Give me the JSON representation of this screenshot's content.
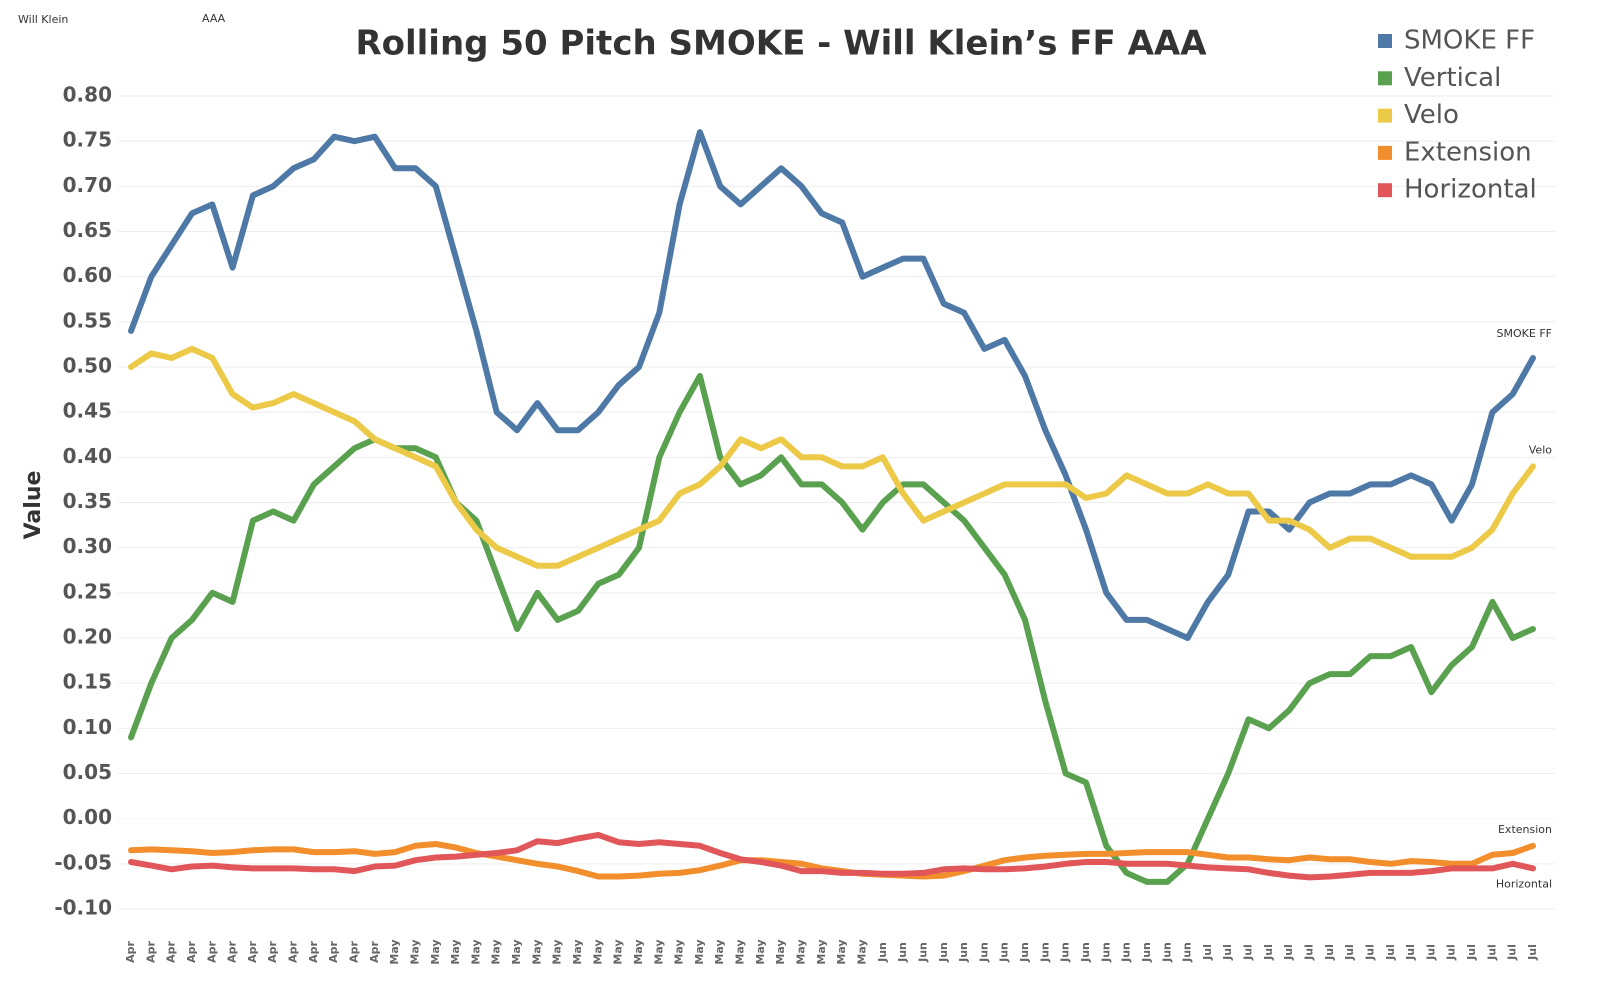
{
  "chart_data": {
    "type": "line",
    "title": "Rolling 50 Pitch SMOKE - Will Klein’s FF AAA",
    "player_label": "Will Klein",
    "level_label": "AAA",
    "y_label": "Value",
    "grid": true,
    "legend": "top-right",
    "ylim": [
      -0.1,
      0.8
    ],
    "yticks": [
      {
        "value": -0.1,
        "label": "-0.10"
      },
      {
        "value": -0.05,
        "label": "-0.05"
      },
      {
        "value": 0,
        "label": "0.00"
      },
      {
        "value": 0.05,
        "label": "0.05"
      },
      {
        "value": 0.1,
        "label": "0.10"
      },
      {
        "value": 0.15,
        "label": "0.15"
      },
      {
        "value": 0.2,
        "label": "0.20"
      },
      {
        "value": 0.25,
        "label": "0.25"
      },
      {
        "value": 0.3,
        "label": "0.30"
      },
      {
        "value": 0.35,
        "label": "0.35"
      },
      {
        "value": 0.4,
        "label": "0.40"
      },
      {
        "value": 0.45,
        "label": "0.45"
      },
      {
        "value": 0.5,
        "label": "0.50"
      },
      {
        "value": 0.55,
        "label": "0.55"
      },
      {
        "value": 0.6,
        "label": "0.60"
      },
      {
        "value": 0.65,
        "label": "0.65"
      },
      {
        "value": 0.7,
        "label": "0.70"
      },
      {
        "value": 0.75,
        "label": "0.75"
      },
      {
        "value": 0.8,
        "label": "0.80"
      }
    ],
    "categories": [
      "Apr",
      "Apr",
      "Apr",
      "Apr",
      "Apr",
      "Apr",
      "Apr",
      "Apr",
      "Apr",
      "Apr",
      "Apr",
      "Apr",
      "Apr",
      "May",
      "May",
      "May",
      "May",
      "May",
      "May",
      "May",
      "May",
      "May",
      "May",
      "May",
      "May",
      "May",
      "May",
      "May",
      "May",
      "May",
      "May",
      "May",
      "May",
      "May",
      "May",
      "May",
      "May",
      "Jun",
      "Jun",
      "Jun",
      "Jun",
      "Jun",
      "Jun",
      "Jun",
      "Jun",
      "Jun",
      "Jun",
      "Jun",
      "Jun",
      "Jun",
      "Jun",
      "Jun",
      "Jun",
      "Jul",
      "Jul",
      "Jul",
      "Jul",
      "Jul",
      "Jul",
      "Jul",
      "Jul",
      "Jul",
      "Jul",
      "Jul",
      "Jul",
      "Jul",
      "Jul",
      "Jul",
      "Jul",
      "Jul"
    ],
    "series": [
      {
        "name": "SMOKE FF",
        "color": "#4e79a7",
        "end_label": true,
        "values": [
          0.54,
          0.6,
          0.635,
          0.67,
          0.68,
          0.61,
          0.69,
          0.7,
          0.72,
          0.73,
          0.755,
          0.75,
          0.755,
          0.72,
          0.72,
          0.7,
          0.62,
          0.54,
          0.45,
          0.43,
          0.46,
          0.43,
          0.43,
          0.45,
          0.48,
          0.5,
          0.56,
          0.68,
          0.76,
          0.7,
          0.68,
          0.7,
          0.72,
          0.7,
          0.67,
          0.66,
          0.6,
          0.61,
          0.62,
          0.62,
          0.57,
          0.56,
          0.52,
          0.53,
          0.49,
          0.43,
          0.38,
          0.32,
          0.25,
          0.22,
          0.22,
          0.21,
          0.2,
          0.24,
          0.27,
          0.34,
          0.34,
          0.32,
          0.35,
          0.36,
          0.36,
          0.37,
          0.37,
          0.38,
          0.37,
          0.33,
          0.37,
          0.45,
          0.47,
          0.51
        ]
      },
      {
        "name": "Vertical",
        "color": "#59a14f",
        "end_label": false,
        "values": [
          0.09,
          0.15,
          0.2,
          0.22,
          0.25,
          0.24,
          0.33,
          0.34,
          0.33,
          0.37,
          0.39,
          0.41,
          0.42,
          0.41,
          0.41,
          0.4,
          0.35,
          0.33,
          0.27,
          0.21,
          0.25,
          0.22,
          0.23,
          0.26,
          0.27,
          0.3,
          0.4,
          0.45,
          0.49,
          0.4,
          0.37,
          0.38,
          0.4,
          0.37,
          0.37,
          0.35,
          0.32,
          0.35,
          0.37,
          0.37,
          0.35,
          0.33,
          0.3,
          0.27,
          0.22,
          0.13,
          0.05,
          0.04,
          -0.03,
          -0.06,
          -0.07,
          -0.07,
          -0.05,
          0.0,
          0.05,
          0.11,
          0.1,
          0.12,
          0.15,
          0.16,
          0.16,
          0.18,
          0.18,
          0.19,
          0.14,
          0.17,
          0.19,
          0.24,
          0.2,
          0.21
        ]
      },
      {
        "name": "Velo",
        "color": "#edc948",
        "end_label": true,
        "values": [
          0.5,
          0.515,
          0.51,
          0.52,
          0.51,
          0.47,
          0.455,
          0.46,
          0.47,
          0.46,
          0.45,
          0.44,
          0.42,
          0.41,
          0.4,
          0.39,
          0.35,
          0.32,
          0.3,
          0.29,
          0.28,
          0.28,
          0.29,
          0.3,
          0.31,
          0.32,
          0.33,
          0.36,
          0.37,
          0.39,
          0.42,
          0.41,
          0.42,
          0.4,
          0.4,
          0.39,
          0.39,
          0.4,
          0.36,
          0.33,
          0.34,
          0.35,
          0.36,
          0.37,
          0.37,
          0.37,
          0.37,
          0.355,
          0.36,
          0.38,
          0.37,
          0.36,
          0.36,
          0.37,
          0.36,
          0.36,
          0.33,
          0.33,
          0.32,
          0.3,
          0.31,
          0.31,
          0.3,
          0.29,
          0.29,
          0.29,
          0.3,
          0.32,
          0.36,
          0.39
        ]
      },
      {
        "name": "Extension",
        "color": "#f28e2b",
        "end_label": true,
        "values": [
          -0.035,
          -0.034,
          -0.035,
          -0.036,
          -0.038,
          -0.037,
          -0.035,
          -0.034,
          -0.034,
          -0.037,
          -0.037,
          -0.036,
          -0.039,
          -0.037,
          -0.03,
          -0.028,
          -0.032,
          -0.038,
          -0.042,
          -0.046,
          -0.05,
          -0.053,
          -0.058,
          -0.064,
          -0.064,
          -0.063,
          -0.061,
          -0.06,
          -0.057,
          -0.052,
          -0.046,
          -0.046,
          -0.048,
          -0.05,
          -0.055,
          -0.058,
          -0.061,
          -0.062,
          -0.063,
          -0.064,
          -0.063,
          -0.058,
          -0.052,
          -0.046,
          -0.043,
          -0.041,
          -0.04,
          -0.039,
          -0.039,
          -0.038,
          -0.037,
          -0.037,
          -0.037,
          -0.04,
          -0.043,
          -0.043,
          -0.045,
          -0.046,
          -0.043,
          -0.045,
          -0.045,
          -0.048,
          -0.05,
          -0.047,
          -0.048,
          -0.05,
          -0.05,
          -0.04,
          -0.038,
          -0.03
        ]
      },
      {
        "name": "Horizontal",
        "color": "#e15759",
        "end_label": true,
        "values": [
          -0.048,
          -0.052,
          -0.056,
          -0.053,
          -0.052,
          -0.054,
          -0.055,
          -0.055,
          -0.055,
          -0.056,
          -0.056,
          -0.058,
          -0.053,
          -0.052,
          -0.046,
          -0.043,
          -0.042,
          -0.04,
          -0.038,
          -0.035,
          -0.025,
          -0.027,
          -0.022,
          -0.018,
          -0.026,
          -0.028,
          -0.026,
          -0.028,
          -0.03,
          -0.038,
          -0.045,
          -0.048,
          -0.052,
          -0.058,
          -0.058,
          -0.06,
          -0.06,
          -0.061,
          -0.061,
          -0.06,
          -0.056,
          -0.055,
          -0.056,
          -0.056,
          -0.055,
          -0.053,
          -0.05,
          -0.048,
          -0.048,
          -0.05,
          -0.05,
          -0.05,
          -0.052,
          -0.054,
          -0.055,
          -0.056,
          -0.06,
          -0.063,
          -0.065,
          -0.064,
          -0.062,
          -0.06,
          -0.06,
          -0.06,
          -0.058,
          -0.055,
          -0.055,
          -0.055,
          -0.05,
          -0.055
        ]
      }
    ]
  }
}
